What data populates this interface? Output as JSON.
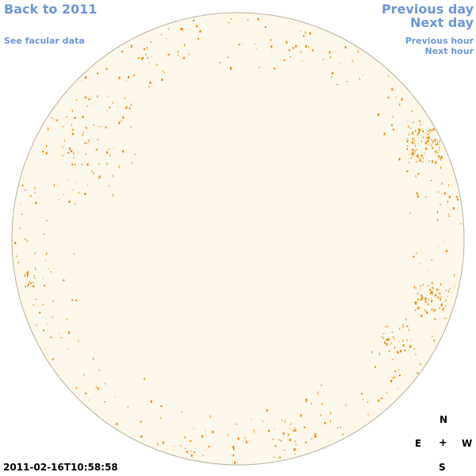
{
  "nav": {
    "back_label": "Back to 2011",
    "facular_label": "See facular data",
    "prev_day_label": "Previous day",
    "next_day_label": "Next day",
    "prev_hour_label": "Previous hour",
    "next_hour_label": "Next hour"
  },
  "timestamp": "2011-02-16T10:58:58",
  "compass": {
    "north": "N",
    "east": "E",
    "center": "+",
    "west": "W",
    "south": "S"
  },
  "colors": {
    "disk_fill": "#fdf8ea",
    "disk_stroke": "#b8b0a0",
    "feature": "#ee8800",
    "link": "#6f96d8"
  }
}
